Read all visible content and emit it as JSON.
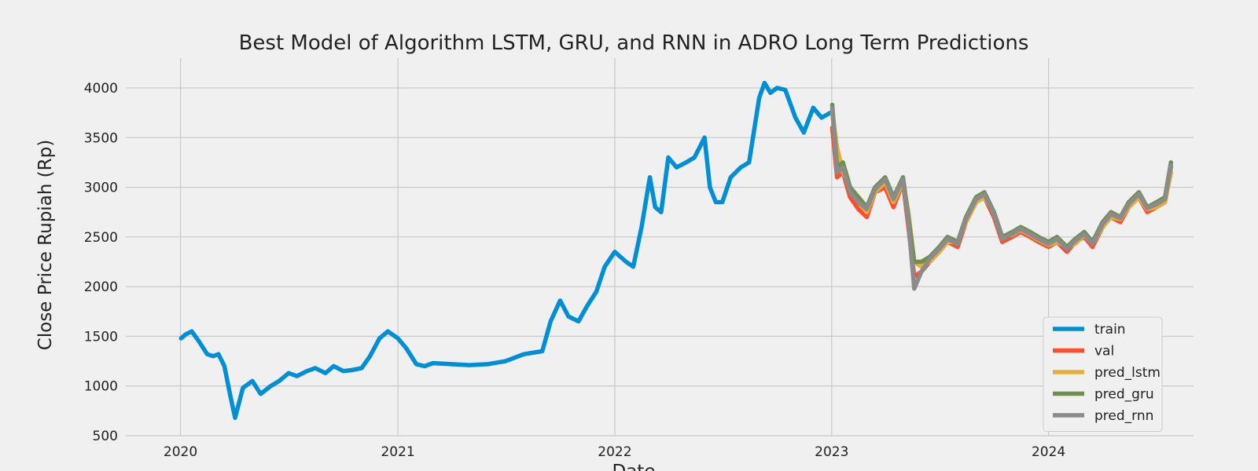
{
  "chart_data": {
    "type": "line",
    "title": "Best Model of Algorithm LSTM, GRU, and RNN in ADRO Long Term Predictions",
    "xlabel": "Date",
    "ylabel": "Close Price Rupiah (Rp)",
    "xlim": [
      "2019-10-01",
      "2024-09-01"
    ],
    "ylim": [
      500,
      4300
    ],
    "x_ticks": [
      "2020-01-01",
      "2021-01-01",
      "2022-01-01",
      "2023-01-01",
      "2024-01-01"
    ],
    "x_tick_labels": [
      "2020",
      "2021",
      "2022",
      "2023",
      "2024"
    ],
    "y_ticks": [
      500,
      1000,
      1500,
      2000,
      2500,
      3000,
      3500,
      4000
    ],
    "grid": true,
    "legend_position": "bottom-right",
    "series": [
      {
        "name": "train",
        "color": "#008fd5",
        "x": [
          "2020-01-02",
          "2020-01-10",
          "2020-01-20",
          "2020-02-01",
          "2020-02-15",
          "2020-02-25",
          "2020-03-05",
          "2020-03-15",
          "2020-03-25",
          "2020-04-02",
          "2020-04-15",
          "2020-05-01",
          "2020-05-15",
          "2020-06-01",
          "2020-06-15",
          "2020-07-01",
          "2020-07-15",
          "2020-08-01",
          "2020-08-15",
          "2020-09-01",
          "2020-09-15",
          "2020-10-01",
          "2020-10-15",
          "2020-11-01",
          "2020-11-15",
          "2020-12-01",
          "2020-12-15",
          "2021-01-01",
          "2021-01-15",
          "2021-02-01",
          "2021-02-15",
          "2021-03-01",
          "2021-04-01",
          "2021-05-01",
          "2021-06-01",
          "2021-07-01",
          "2021-08-01",
          "2021-09-01",
          "2021-09-15",
          "2021-10-01",
          "2021-10-15",
          "2021-11-01",
          "2021-11-15",
          "2021-12-01",
          "2021-12-15",
          "2022-01-01",
          "2022-01-20",
          "2022-02-01",
          "2022-02-15",
          "2022-03-01",
          "2022-03-10",
          "2022-03-20",
          "2022-04-01",
          "2022-04-15",
          "2022-05-01",
          "2022-05-15",
          "2022-06-01",
          "2022-06-10",
          "2022-06-20",
          "2022-07-01",
          "2022-07-15",
          "2022-08-01",
          "2022-08-15",
          "2022-09-01",
          "2022-09-10",
          "2022-09-20",
          "2022-10-01",
          "2022-10-15",
          "2022-11-01",
          "2022-11-15",
          "2022-12-01",
          "2022-12-15",
          "2022-12-30"
        ],
        "values": [
          1480,
          1520,
          1550,
          1450,
          1320,
          1300,
          1320,
          1200,
          900,
          680,
          980,
          1050,
          920,
          1000,
          1050,
          1130,
          1100,
          1150,
          1180,
          1130,
          1200,
          1150,
          1160,
          1180,
          1300,
          1480,
          1550,
          1480,
          1380,
          1220,
          1200,
          1230,
          1220,
          1210,
          1220,
          1250,
          1320,
          1350,
          1650,
          1860,
          1700,
          1650,
          1800,
          1950,
          2200,
          2350,
          2250,
          2200,
          2600,
          3100,
          2800,
          2750,
          3300,
          3200,
          3250,
          3300,
          3500,
          3000,
          2850,
          2850,
          3100,
          3200,
          3250,
          3900,
          4050,
          3950,
          4000,
          3980,
          3700,
          3550,
          3800,
          3700,
          3750
        ]
      },
      {
        "name": "val",
        "color": "#fc4f30",
        "x": [
          "2023-01-02",
          "2023-01-10",
          "2023-01-20",
          "2023-02-01",
          "2023-02-15",
          "2023-03-01",
          "2023-03-15",
          "2023-04-01",
          "2023-04-15",
          "2023-05-01",
          "2023-05-10",
          "2023-05-20",
          "2023-06-01",
          "2023-06-15",
          "2023-07-01",
          "2023-07-15",
          "2023-08-01",
          "2023-08-15",
          "2023-09-01",
          "2023-09-15",
          "2023-10-01",
          "2023-10-15",
          "2023-11-01",
          "2023-11-15",
          "2023-12-01",
          "2023-12-15",
          "2024-01-01",
          "2024-01-15",
          "2024-02-01",
          "2024-02-15",
          "2024-03-01",
          "2024-03-15",
          "2024-04-01",
          "2024-04-15",
          "2024-05-01",
          "2024-05-15",
          "2024-06-01",
          "2024-06-15",
          "2024-07-01",
          "2024-07-15",
          "2024-07-25"
        ],
        "values": [
          3600,
          3100,
          3150,
          2900,
          2780,
          2700,
          2950,
          3000,
          2800,
          3050,
          2600,
          2100,
          2150,
          2250,
          2350,
          2450,
          2400,
          2650,
          2850,
          2900,
          2700,
          2450,
          2500,
          2550,
          2500,
          2450,
          2400,
          2450,
          2350,
          2450,
          2500,
          2400,
          2600,
          2700,
          2650,
          2800,
          2900,
          2750,
          2800,
          2850,
          3200
        ]
      },
      {
        "name": "pred_lstm",
        "color": "#e5ae38",
        "x": [
          "2023-01-02",
          "2023-01-10",
          "2023-01-20",
          "2023-02-01",
          "2023-02-15",
          "2023-03-01",
          "2023-03-15",
          "2023-04-01",
          "2023-04-15",
          "2023-05-01",
          "2023-05-10",
          "2023-05-20",
          "2023-06-01",
          "2023-06-15",
          "2023-07-01",
          "2023-07-15",
          "2023-08-01",
          "2023-08-15",
          "2023-09-01",
          "2023-09-15",
          "2023-10-01",
          "2023-10-15",
          "2023-11-01",
          "2023-11-15",
          "2023-12-01",
          "2023-12-15",
          "2024-01-01",
          "2024-01-15",
          "2024-02-01",
          "2024-02-15",
          "2024-03-01",
          "2024-03-15",
          "2024-04-01",
          "2024-04-15",
          "2024-05-01",
          "2024-05-15",
          "2024-06-01",
          "2024-06-15",
          "2024-07-01",
          "2024-07-15",
          "2024-07-25"
        ],
        "values": [
          3750,
          3400,
          3150,
          3000,
          2850,
          2750,
          2950,
          3050,
          2850,
          3050,
          2750,
          2250,
          2200,
          2250,
          2350,
          2450,
          2450,
          2650,
          2850,
          2900,
          2750,
          2500,
          2520,
          2570,
          2520,
          2470,
          2420,
          2450,
          2400,
          2430,
          2520,
          2430,
          2600,
          2700,
          2680,
          2800,
          2900,
          2780,
          2800,
          2850,
          3150
        ]
      },
      {
        "name": "pred_gru",
        "color": "#6d904f",
        "x": [
          "2023-01-02",
          "2023-01-10",
          "2023-01-20",
          "2023-02-01",
          "2023-02-15",
          "2023-03-01",
          "2023-03-15",
          "2023-04-01",
          "2023-04-15",
          "2023-05-01",
          "2023-05-10",
          "2023-05-20",
          "2023-06-01",
          "2023-06-15",
          "2023-07-01",
          "2023-07-15",
          "2023-08-01",
          "2023-08-15",
          "2023-09-01",
          "2023-09-15",
          "2023-10-01",
          "2023-10-15",
          "2023-11-01",
          "2023-11-15",
          "2023-12-01",
          "2023-12-15",
          "2024-01-01",
          "2024-01-15",
          "2024-02-01",
          "2024-02-15",
          "2024-03-01",
          "2024-03-15",
          "2024-04-01",
          "2024-04-15",
          "2024-05-01",
          "2024-05-15",
          "2024-06-01",
          "2024-06-15",
          "2024-07-01",
          "2024-07-15",
          "2024-07-25"
        ],
        "values": [
          3830,
          3200,
          3250,
          3000,
          2900,
          2800,
          3000,
          3100,
          2900,
          3100,
          2700,
          2250,
          2250,
          2300,
          2400,
          2500,
          2450,
          2700,
          2900,
          2950,
          2750,
          2500,
          2550,
          2600,
          2550,
          2500,
          2450,
          2500,
          2400,
          2480,
          2550,
          2450,
          2650,
          2750,
          2700,
          2850,
          2950,
          2800,
          2850,
          2900,
          3250
        ]
      },
      {
        "name": "pred_rnn",
        "color": "#8b8b8b",
        "x": [
          "2023-01-02",
          "2023-01-10",
          "2023-01-20",
          "2023-02-01",
          "2023-02-15",
          "2023-03-01",
          "2023-03-15",
          "2023-04-01",
          "2023-04-15",
          "2023-05-01",
          "2023-05-10",
          "2023-05-20",
          "2023-06-01",
          "2023-06-15",
          "2023-07-01",
          "2023-07-15",
          "2023-08-01",
          "2023-08-15",
          "2023-09-01",
          "2023-09-15",
          "2023-10-01",
          "2023-10-15",
          "2023-11-01",
          "2023-11-15",
          "2023-12-01",
          "2023-12-15",
          "2024-01-01",
          "2024-01-15",
          "2024-02-01",
          "2024-02-15",
          "2024-03-01",
          "2024-03-15",
          "2024-04-01",
          "2024-04-15",
          "2024-05-01",
          "2024-05-15",
          "2024-06-01",
          "2024-06-15",
          "2024-07-01",
          "2024-07-15",
          "2024-07-25"
        ],
        "values": [
          3800,
          3150,
          3200,
          2950,
          2850,
          2780,
          2980,
          3080,
          2880,
          3080,
          2650,
          1980,
          2150,
          2280,
          2380,
          2480,
          2430,
          2680,
          2880,
          2930,
          2730,
          2480,
          2530,
          2580,
          2530,
          2480,
          2430,
          2480,
          2380,
          2460,
          2530,
          2430,
          2630,
          2730,
          2690,
          2830,
          2930,
          2790,
          2830,
          2880,
          3220
        ]
      }
    ]
  }
}
